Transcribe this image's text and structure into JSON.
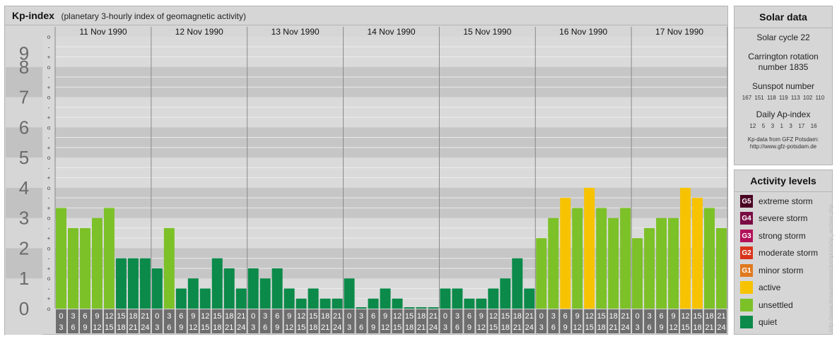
{
  "header": {
    "title": "Kp-index",
    "subtitle": "(planetary 3-hourly index of geomagnetic activity)"
  },
  "chart_data": {
    "type": "bar",
    "ylim": [
      0,
      9
    ],
    "y_major_ticks": [
      "0",
      "1",
      "2",
      "3",
      "4",
      "5",
      "6",
      "7",
      "8",
      "9"
    ],
    "y_minor_marks": [
      "o",
      "+",
      "-"
    ],
    "days": [
      "11 Nov 1990",
      "12 Nov 1990",
      "13 Nov 1990",
      "14 Nov 1990",
      "15 Nov 1990",
      "16 Nov 1990",
      "17 Nov 1990"
    ],
    "interval_labels": [
      [
        "0",
        "3"
      ],
      [
        "3",
        "6"
      ],
      [
        "6",
        "9"
      ],
      [
        "9",
        "12"
      ],
      [
        "12",
        "15"
      ],
      [
        "15",
        "18"
      ],
      [
        "18",
        "21"
      ],
      [
        "21",
        "24"
      ]
    ],
    "values": [
      [
        3.333,
        2.667,
        2.667,
        3.0,
        3.333,
        1.667,
        1.667,
        1.667
      ],
      [
        1.333,
        2.667,
        0.667,
        1.0,
        0.667,
        1.667,
        1.333,
        0.667
      ],
      [
        1.333,
        1.0,
        1.333,
        0.667,
        0.333,
        0.667,
        0.333,
        0.333
      ],
      [
        1.0,
        0.0,
        0.333,
        0.667,
        0.333,
        0.0,
        0.0,
        0.0
      ],
      [
        0.667,
        0.667,
        0.333,
        0.333,
        0.667,
        1.0,
        1.667,
        0.667
      ],
      [
        2.333,
        3.0,
        3.667,
        3.333,
        4.0,
        3.333,
        3.0,
        3.333
      ],
      [
        2.333,
        2.667,
        3.0,
        3.0,
        4.0,
        3.667,
        3.333,
        2.667
      ]
    ],
    "colors": {
      "quiet": "#0b8a4a",
      "unsettled": "#7cc127",
      "active": "#f7c300",
      "minor": "#e07a1f",
      "moderate": "#d9341c",
      "strong": "#b3125a",
      "severe": "#7a0c44",
      "extreme": "#4a0022"
    }
  },
  "solar": {
    "title": "Solar data",
    "cycle": "Solar cycle 22",
    "carrington_line1": "Carrington rotation",
    "carrington_line2": "number 1835",
    "sunspot_label": "Sunspot number",
    "sunspot_values": "167 151 118 119 113 102 110",
    "ap_label": "Daily Ap-index",
    "ap_values": "12  5  3  1  3  17  16",
    "credit1": "Kp-data from GFZ Potsdam:",
    "credit2": "http://www.gfz-potsdam.de"
  },
  "activity": {
    "title": "Activity levels",
    "levels": [
      {
        "badge": "G5",
        "label": "extreme storm",
        "color": "#4a0022"
      },
      {
        "badge": "G4",
        "label": "severe storm",
        "color": "#7a0c44"
      },
      {
        "badge": "G3",
        "label": "strong storm",
        "color": "#b3125a"
      },
      {
        "badge": "G2",
        "label": "moderate storm",
        "color": "#d9341c"
      },
      {
        "badge": "G1",
        "label": "minor storm",
        "color": "#e07a1f"
      },
      {
        "badge": "",
        "label": "active",
        "color": "#f7c300"
      },
      {
        "badge": "",
        "label": "unsettled",
        "color": "#7cc127"
      },
      {
        "badge": "",
        "label": "quiet",
        "color": "#0b8a4a"
      }
    ]
  },
  "watermark": "http://www.tiesenesterreichs/spur/a/sp_archive.php"
}
